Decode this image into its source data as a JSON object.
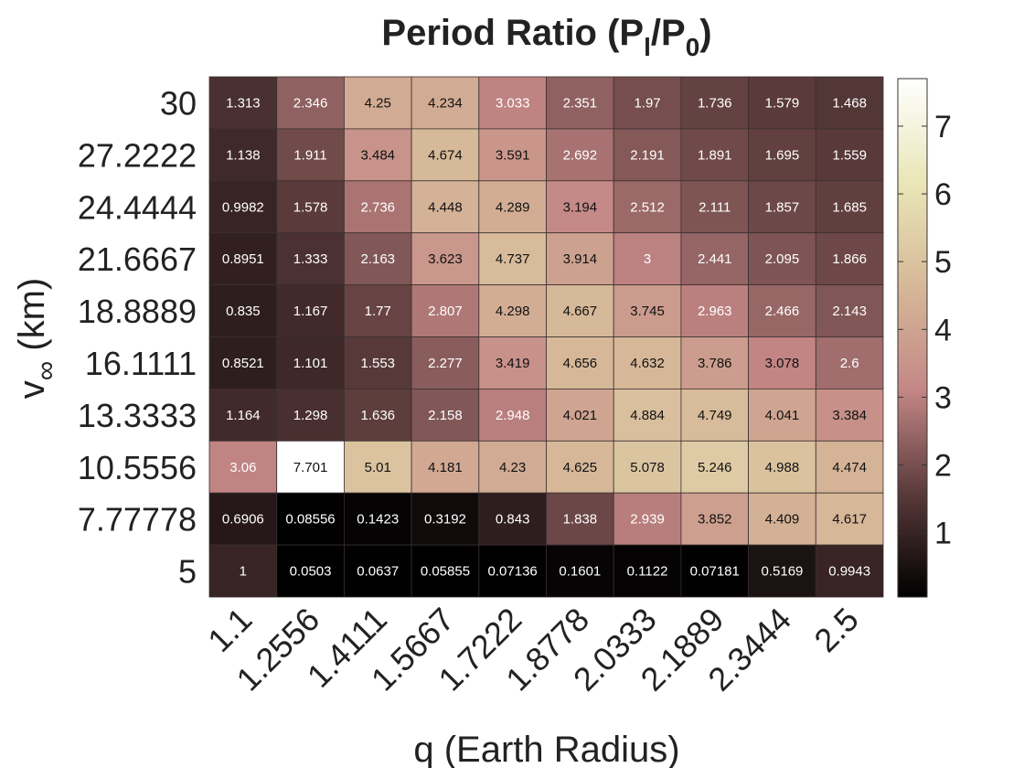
{
  "chart_data": {
    "type": "heatmap",
    "title": "Period Ratio (P",
    "title_sub1": "l",
    "title_mid": "/P",
    "title_sub2": "0",
    "title_end": ")",
    "xlabel": "q (Earth Radius)",
    "ylabel": "v",
    "ylabel_sub": "∞",
    "ylabel_end": " (km)",
    "x": [
      "1.1",
      "1.2556",
      "1.4111",
      "1.5667",
      "1.7222",
      "1.8778",
      "2.0333",
      "2.1889",
      "2.3444",
      "2.5"
    ],
    "y": [
      "30",
      "27.2222",
      "24.4444",
      "21.6667",
      "18.8889",
      "16.1111",
      "13.3333",
      "10.5556",
      "7.77778",
      "5"
    ],
    "values": [
      [
        1.313,
        2.346,
        4.25,
        4.234,
        3.033,
        2.351,
        1.97,
        1.736,
        1.579,
        1.468
      ],
      [
        1.138,
        1.911,
        3.484,
        4.674,
        3.591,
        2.692,
        2.191,
        1.891,
        1.695,
        1.559
      ],
      [
        0.9982,
        1.578,
        2.736,
        4.448,
        4.289,
        3.194,
        2.512,
        2.111,
        1.857,
        1.685
      ],
      [
        0.8951,
        1.333,
        2.163,
        3.623,
        4.737,
        3.914,
        3,
        2.441,
        2.095,
        1.866
      ],
      [
        0.835,
        1.167,
        1.77,
        2.807,
        4.298,
        4.667,
        3.745,
        2.963,
        2.466,
        2.143
      ],
      [
        0.8521,
        1.101,
        1.553,
        2.277,
        3.419,
        4.656,
        4.632,
        3.786,
        3.078,
        2.6
      ],
      [
        1.164,
        1.298,
        1.636,
        2.158,
        2.948,
        4.021,
        4.884,
        4.749,
        4.041,
        3.384
      ],
      [
        3.06,
        7.701,
        5.01,
        4.181,
        4.23,
        4.625,
        5.078,
        5.246,
        4.988,
        4.474
      ],
      [
        0.6906,
        0.08556,
        0.1423,
        0.3192,
        0.843,
        1.838,
        2.939,
        3.852,
        4.409,
        4.617
      ],
      [
        1,
        0.0503,
        0.0637,
        0.05855,
        0.07136,
        0.1601,
        0.1122,
        0.07181,
        0.5169,
        0.9943
      ]
    ],
    "labels": [
      [
        "1.313",
        "2.346",
        "4.25",
        "4.234",
        "3.033",
        "2.351",
        "1.97",
        "1.736",
        "1.579",
        "1.468"
      ],
      [
        "1.138",
        "1.911",
        "3.484",
        "4.674",
        "3.591",
        "2.692",
        "2.191",
        "1.891",
        "1.695",
        "1.559"
      ],
      [
        "0.9982",
        "1.578",
        "2.736",
        "4.448",
        "4.289",
        "3.194",
        "2.512",
        "2.111",
        "1.857",
        "1.685"
      ],
      [
        "0.8951",
        "1.333",
        "2.163",
        "3.623",
        "4.737",
        "3.914",
        "3",
        "2.441",
        "2.095",
        "1.866"
      ],
      [
        "0.835",
        "1.167",
        "1.77",
        "2.807",
        "4.298",
        "4.667",
        "3.745",
        "2.963",
        "2.466",
        "2.143"
      ],
      [
        "0.8521",
        "1.101",
        "1.553",
        "2.277",
        "3.419",
        "4.656",
        "4.632",
        "3.786",
        "3.078",
        "2.6"
      ],
      [
        "1.164",
        "1.298",
        "1.636",
        "2.158",
        "2.948",
        "4.021",
        "4.884",
        "4.749",
        "4.041",
        "3.384"
      ],
      [
        "3.06",
        "7.701",
        "5.01",
        "4.181",
        "4.23",
        "4.625",
        "5.078",
        "5.246",
        "4.988",
        "4.474"
      ],
      [
        "0.6906",
        "0.08556",
        "0.1423",
        "0.3192",
        "0.843",
        "1.838",
        "2.939",
        "3.852",
        "4.409",
        "4.617"
      ],
      [
        "1",
        "0.0503",
        "0.0637",
        "0.05855",
        "0.07136",
        "0.1601",
        "0.1122",
        "0.07181",
        "0.5169",
        "0.9943"
      ]
    ],
    "colorbar": {
      "min": 0.0503,
      "max": 7.701,
      "ticks": [
        1,
        2,
        3,
        4,
        5,
        6,
        7
      ]
    },
    "colormap": [
      "#000000",
      "#5a3a3a",
      "#c48786",
      "#d6b898",
      "#e9e6b7",
      "#ffffff"
    ],
    "colormap_stops": [
      0,
      0.2,
      0.4,
      0.6,
      0.8,
      1
    ]
  }
}
